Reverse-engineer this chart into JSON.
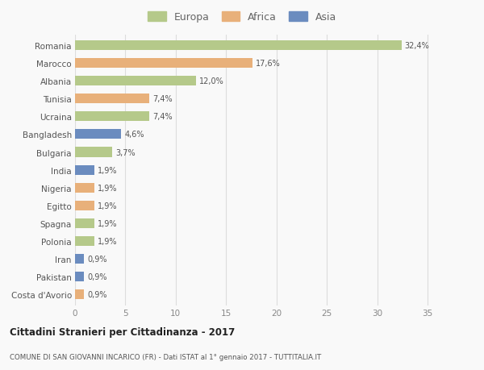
{
  "countries": [
    "Romania",
    "Marocco",
    "Albania",
    "Tunisia",
    "Ucraina",
    "Bangladesh",
    "Bulgaria",
    "India",
    "Nigeria",
    "Egitto",
    "Spagna",
    "Polonia",
    "Iran",
    "Pakistan",
    "Costa d'Avorio"
  ],
  "values": [
    32.4,
    17.6,
    12.0,
    7.4,
    7.4,
    4.6,
    3.7,
    1.9,
    1.9,
    1.9,
    1.9,
    1.9,
    0.9,
    0.9,
    0.9
  ],
  "labels": [
    "32,4%",
    "17,6%",
    "12,0%",
    "7,4%",
    "7,4%",
    "4,6%",
    "3,7%",
    "1,9%",
    "1,9%",
    "1,9%",
    "1,9%",
    "1,9%",
    "0,9%",
    "0,9%",
    "0,9%"
  ],
  "continents": [
    "Europa",
    "Africa",
    "Europa",
    "Africa",
    "Europa",
    "Asia",
    "Europa",
    "Asia",
    "Africa",
    "Africa",
    "Europa",
    "Europa",
    "Asia",
    "Asia",
    "Africa"
  ],
  "continent_colors": {
    "Europa": "#b5c98a",
    "Africa": "#e8b07a",
    "Asia": "#6b8cbf"
  },
  "legend_labels": [
    "Europa",
    "Africa",
    "Asia"
  ],
  "legend_colors": [
    "#b5c98a",
    "#e8b07a",
    "#6b8cbf"
  ],
  "title": "Cittadini Stranieri per Cittadinanza - 2017",
  "subtitle": "COMUNE DI SAN GIOVANNI INCARICO (FR) - Dati ISTAT al 1° gennaio 2017 - TUTTITALIA.IT",
  "xlabel_ticks": [
    0,
    5,
    10,
    15,
    20,
    25,
    30,
    35
  ],
  "xlim": [
    0,
    37
  ],
  "background_color": "#f9f9f9",
  "grid_color": "#dddddd",
  "bar_height": 0.55
}
